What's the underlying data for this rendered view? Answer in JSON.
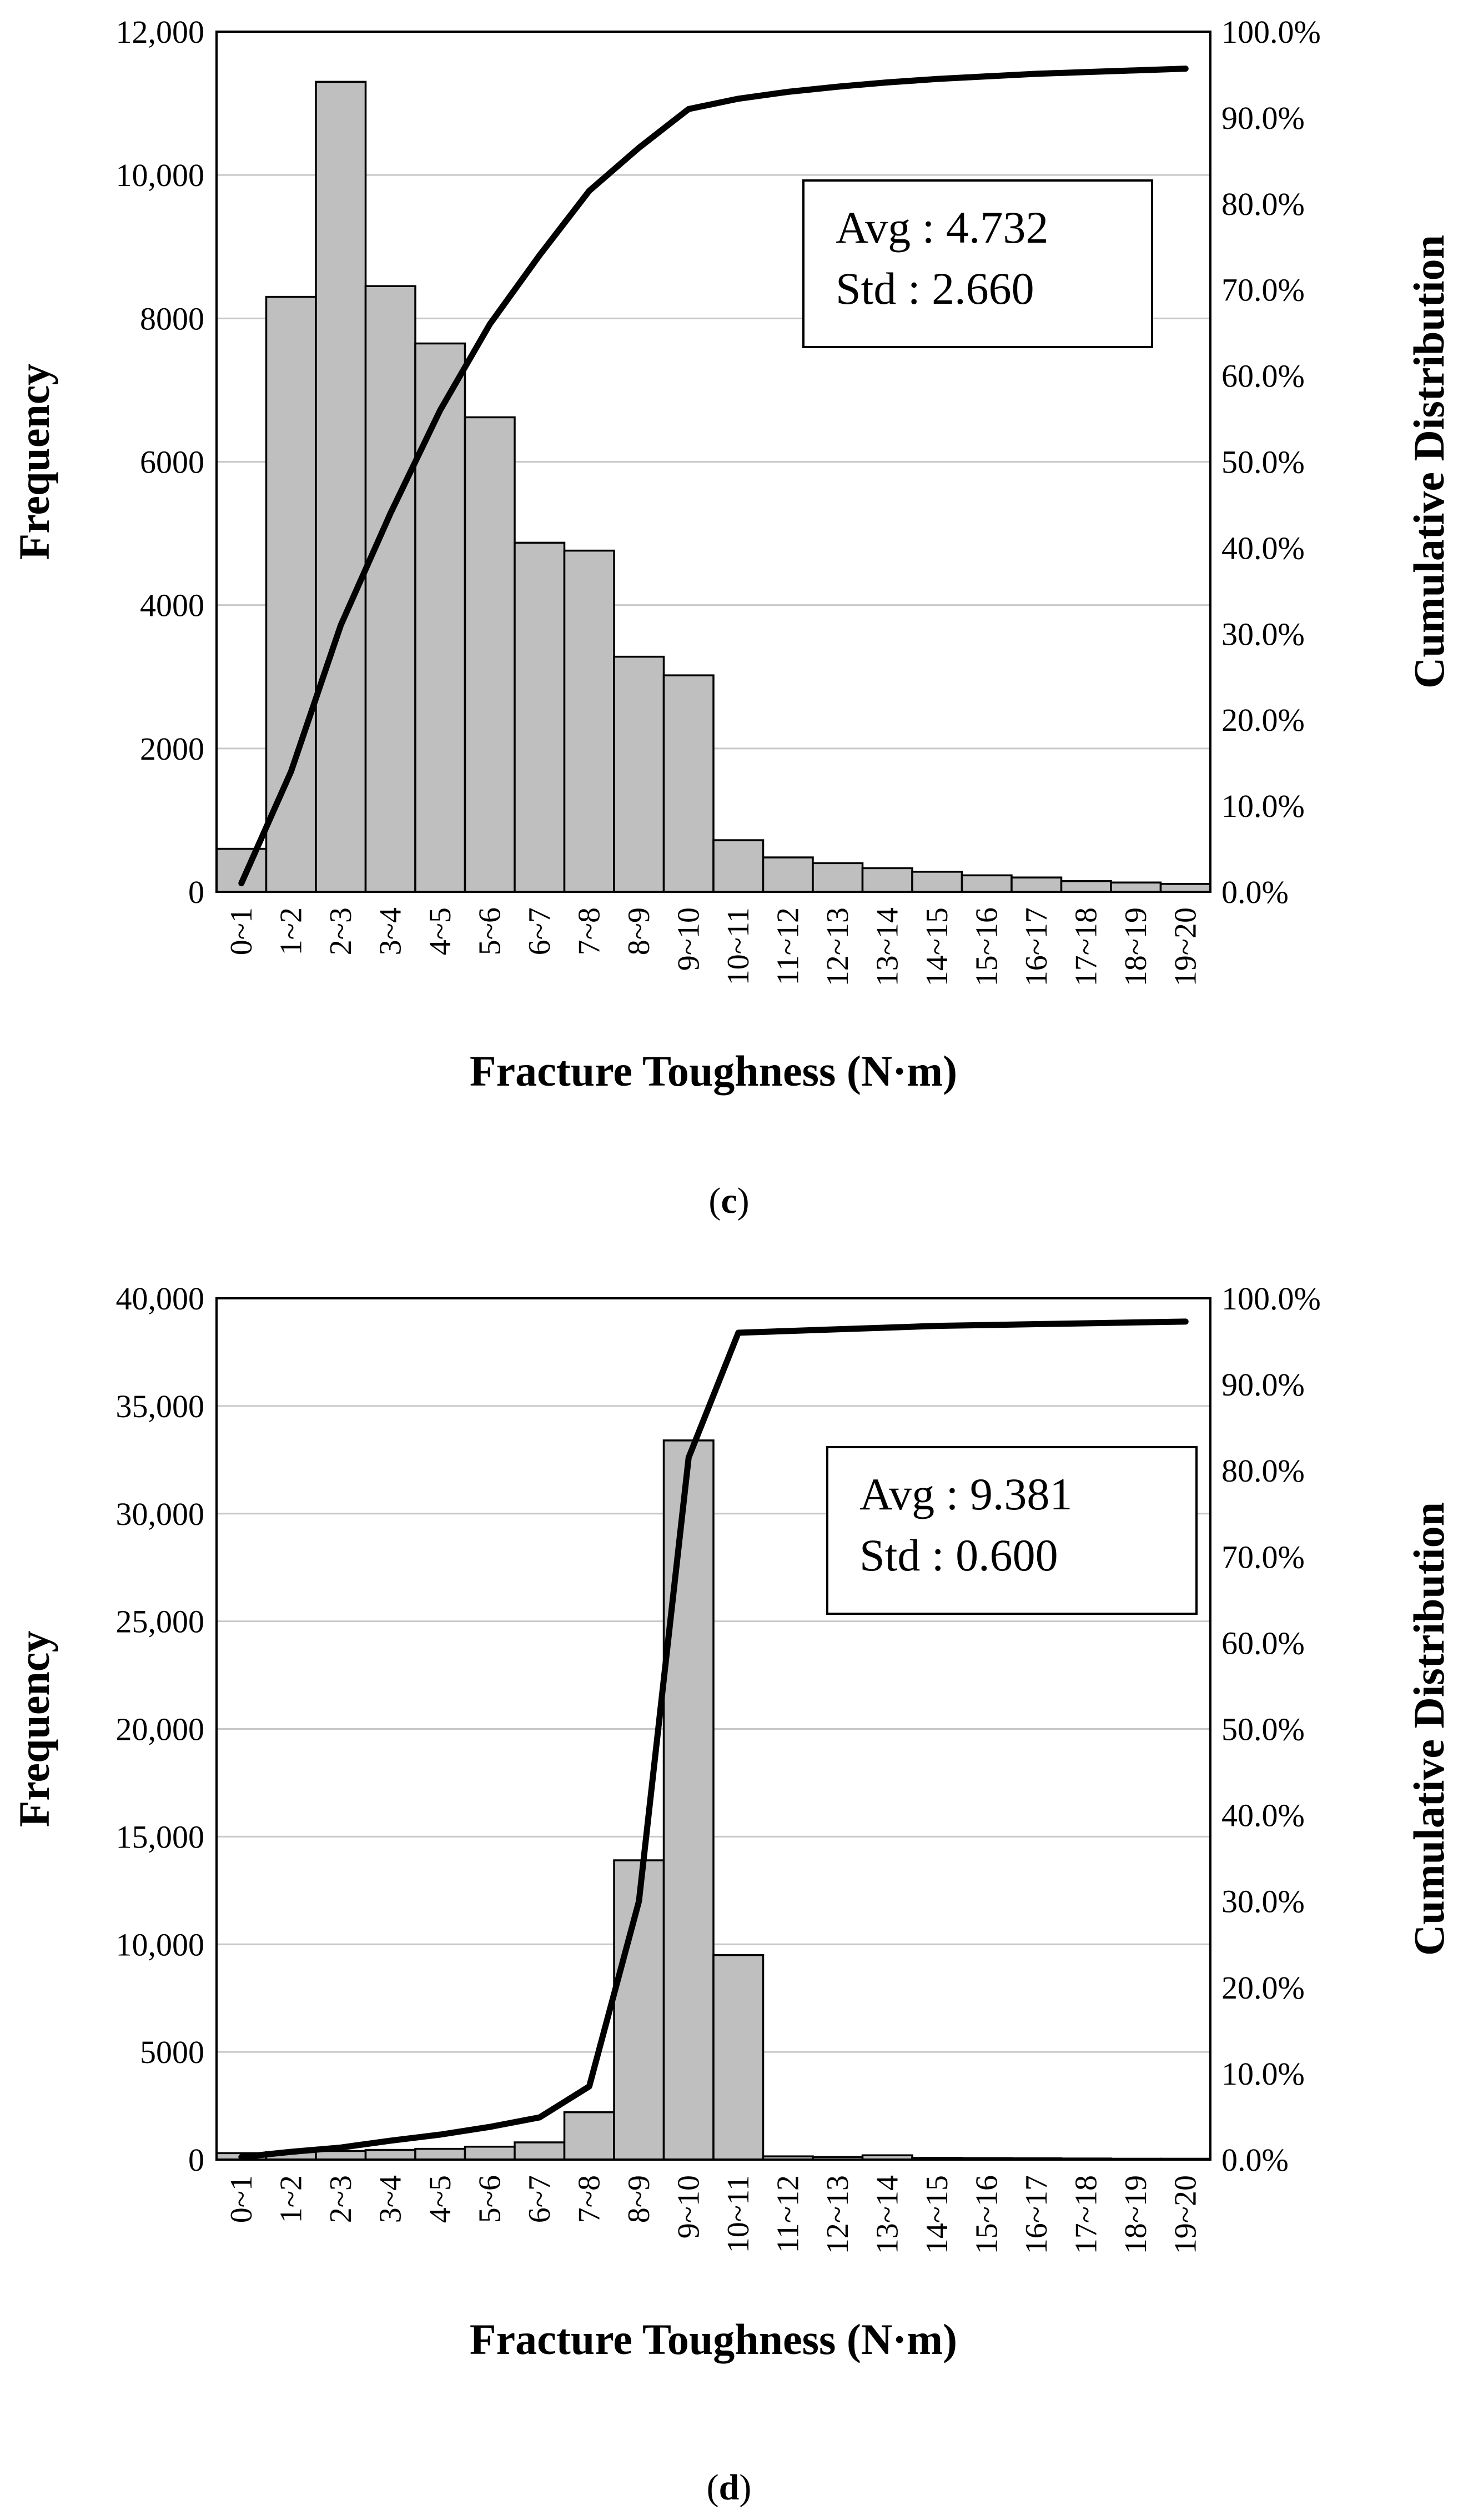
{
  "chart_data": [
    {
      "type": "bar",
      "panel_label": "c",
      "xlabel": "Fracture Toughness (N·m)",
      "ylabel": "Frequency",
      "y2label": "Cumulative Distribution",
      "categories": [
        "0~1",
        "1~2",
        "2~3",
        "3~4",
        "4~5",
        "5~6",
        "6~7",
        "7~8",
        "8~9",
        "9~10",
        "10~11",
        "11~12",
        "12~13",
        "13~14",
        "14~15",
        "15~16",
        "16~17",
        "17~18",
        "18~19",
        "19~20"
      ],
      "ylim": [
        0,
        12000
      ],
      "y_ticks": [
        0,
        2000,
        4000,
        6000,
        8000,
        10000,
        12000
      ],
      "y_tick_labels": [
        "0",
        "2000",
        "4000",
        "6000",
        "8000",
        "10,000",
        "12,000"
      ],
      "y2lim": [
        0,
        100
      ],
      "y2_ticks": [
        0,
        10,
        20,
        30,
        40,
        50,
        60,
        70,
        80,
        90,
        100
      ],
      "y2_tick_labels": [
        "0.0%",
        "10.0%",
        "20.0%",
        "30.0%",
        "40.0%",
        "50.0%",
        "60.0%",
        "70.0%",
        "80.0%",
        "90.0%",
        "100.0%"
      ],
      "grid": true,
      "series": [
        {
          "name": "Frequency",
          "type": "bar",
          "values": [
            600,
            8300,
            11300,
            8450,
            7650,
            6620,
            4870,
            4760,
            3280,
            3020,
            720,
            480,
            400,
            330,
            280,
            230,
            200,
            150,
            130,
            110
          ]
        },
        {
          "name": "Cumulative Distribution",
          "type": "line",
          "axis": "right",
          "values": [
            1.0,
            14.0,
            31.0,
            44.0,
            56.0,
            66.0,
            74.0,
            81.5,
            86.5,
            91.0,
            92.2,
            93.0,
            93.6,
            94.1,
            94.5,
            94.8,
            95.1,
            95.3,
            95.5,
            95.7
          ]
        }
      ],
      "annotation": {
        "line1": "Avg : 4.732",
        "line2": "Std : 2.660",
        "placement": "upper-right"
      }
    },
    {
      "type": "bar",
      "panel_label": "d",
      "xlabel": "Fracture Toughness (N·m)",
      "ylabel": "Frequency",
      "y2label": "Cumulative Distribution",
      "categories": [
        "0~1",
        "1~2",
        "2~3",
        "3~4",
        "4~5",
        "5~6",
        "6~7",
        "7~8",
        "8~9",
        "9~10",
        "10~11",
        "11~12",
        "12~13",
        "13~14",
        "14~15",
        "15~16",
        "16~17",
        "17~18",
        "18~19",
        "19~20"
      ],
      "ylim": [
        0,
        40000
      ],
      "y_ticks": [
        0,
        5000,
        10000,
        15000,
        20000,
        25000,
        30000,
        35000,
        40000
      ],
      "y_tick_labels": [
        "0",
        "5000",
        "10,000",
        "15,000",
        "20,000",
        "25,000",
        "30,000",
        "35,000",
        "40,000"
      ],
      "y2lim": [
        0,
        100
      ],
      "y2_ticks": [
        0,
        10,
        20,
        30,
        40,
        50,
        60,
        70,
        80,
        90,
        100
      ],
      "y2_tick_labels": [
        "0.0%",
        "10.0%",
        "20.0%",
        "30.0%",
        "40.0%",
        "50.0%",
        "60.0%",
        "70.0%",
        "80.0%",
        "90.0%",
        "100.0%"
      ],
      "grid": true,
      "series": [
        {
          "name": "Frequency",
          "type": "bar",
          "values": [
            300,
            350,
            400,
            450,
            500,
            600,
            800,
            2200,
            13900,
            33400,
            9500,
            150,
            120,
            200,
            80,
            70,
            60,
            50,
            40,
            40
          ]
        },
        {
          "name": "Cumulative Distribution",
          "type": "line",
          "axis": "right",
          "values": [
            0.3,
            0.9,
            1.4,
            2.2,
            2.9,
            3.8,
            4.9,
            8.5,
            30.0,
            81.5,
            96.0,
            96.2,
            96.4,
            96.6,
            96.8,
            96.9,
            97.0,
            97.1,
            97.2,
            97.3
          ]
        }
      ],
      "annotation": {
        "line1": "Avg : 9.381",
        "line2": "Std : 0.600",
        "placement": "upper-right"
      }
    }
  ]
}
